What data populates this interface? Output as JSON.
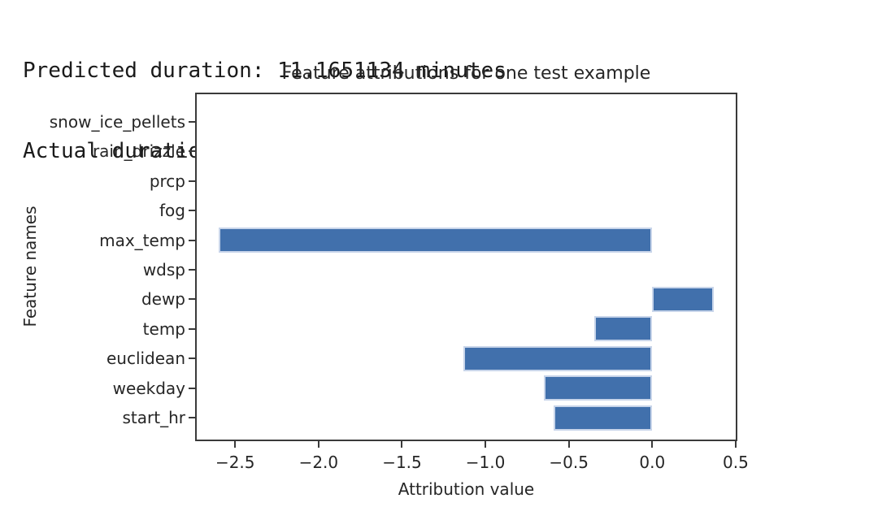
{
  "stdout": {
    "line1": "Predicted duration: 11.1651134 minutes",
    "line2": "Actual duration: 10.0 minutes"
  },
  "chart_data": {
    "type": "bar",
    "orientation": "horizontal",
    "title": "Feature attributions for one test example",
    "xlabel": "Attribution value",
    "ylabel": "Feature names",
    "categories_top_to_bottom": [
      "snow_ice_pellets",
      "rain_drizzle",
      "prcp",
      "fog",
      "max_temp",
      "wdsp",
      "dewp",
      "temp",
      "euclidean",
      "weekday",
      "start_hr"
    ],
    "values": [
      0,
      0,
      0,
      0,
      -2.6,
      0,
      0.37,
      -0.35,
      -1.13,
      -0.65,
      -0.59
    ],
    "xlim": [
      -2.74,
      0.51
    ],
    "x_tick_values": [
      -2.5,
      -2.0,
      -1.5,
      -1.0,
      -0.5,
      0.0,
      0.5
    ],
    "x_tick_labels": [
      "−2.5",
      "−2.0",
      "−1.5",
      "−1.0",
      "−0.5",
      "0.0",
      "0.5"
    ],
    "bar_color": "#4170ac",
    "grid": false,
    "legend": false
  }
}
